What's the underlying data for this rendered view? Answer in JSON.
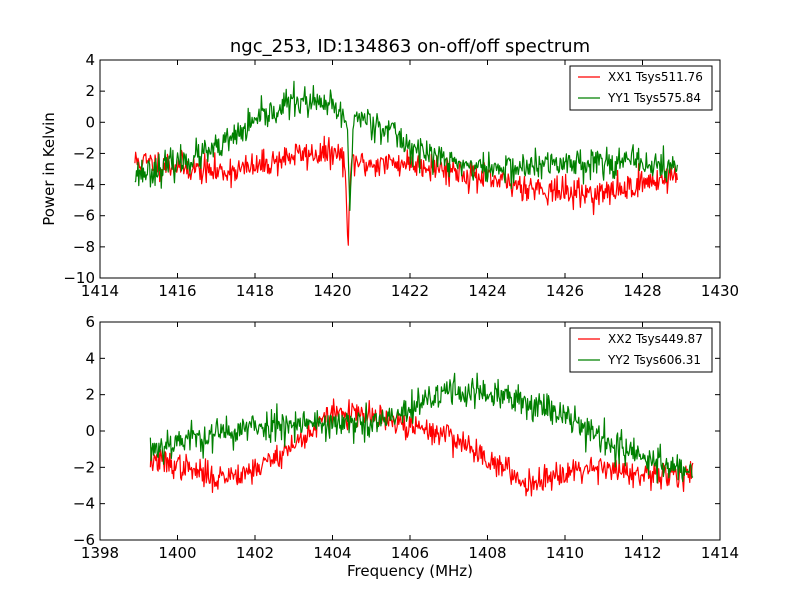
{
  "chart_data": [
    {
      "type": "line",
      "title": "ngc_253, ID:134863 on-off/off spectrum",
      "xlabel": "",
      "ylabel": "Power in Kelvin",
      "xlim": [
        1414,
        1430
      ],
      "ylim": [
        -10,
        4
      ],
      "xticks": [
        "1414",
        "1416",
        "1418",
        "1420",
        "1422",
        "1424",
        "1426",
        "1428",
        "1430"
      ],
      "yticks": [
        "−10",
        "−8",
        "−6",
        "−4",
        "−2",
        "0",
        "2",
        "4"
      ],
      "grid": false,
      "legend_position": "top-right",
      "x_start": 1414.9,
      "x_end": 1428.9,
      "num_points": 700,
      "series": [
        {
          "name": "XX1 Tsys511.76",
          "color": "#ff0000",
          "noise": 0.75,
          "seed": 11,
          "shape": [
            [
              1414.9,
              -2.5
            ],
            [
              1416.0,
              -2.8
            ],
            [
              1417.0,
              -3.2
            ],
            [
              1418.0,
              -2.9
            ],
            [
              1419.0,
              -2.1
            ],
            [
              1420.0,
              -2.0
            ],
            [
              1420.8,
              -2.7
            ],
            [
              1422.0,
              -2.6
            ],
            [
              1423.0,
              -3.0
            ],
            [
              1424.0,
              -3.7
            ],
            [
              1425.0,
              -4.1
            ],
            [
              1426.0,
              -4.5
            ],
            [
              1427.0,
              -4.6
            ],
            [
              1428.0,
              -3.9
            ],
            [
              1428.9,
              -3.4
            ]
          ],
          "dips": [
            [
              1420.4,
              -5.8,
              0.05
            ]
          ]
        },
        {
          "name": "YY1 Tsys575.84",
          "color": "#008000",
          "noise": 0.8,
          "seed": 23,
          "shape": [
            [
              1414.9,
              -3.3
            ],
            [
              1415.5,
              -3.0
            ],
            [
              1416.0,
              -2.6
            ],
            [
              1417.0,
              -1.8
            ],
            [
              1418.0,
              0.0
            ],
            [
              1419.0,
              1.4
            ],
            [
              1420.0,
              1.0
            ],
            [
              1420.3,
              0.2
            ],
            [
              1420.8,
              0.3
            ],
            [
              1421.5,
              -0.5
            ],
            [
              1422.0,
              -1.6
            ],
            [
              1423.0,
              -2.5
            ],
            [
              1424.0,
              -3.0
            ],
            [
              1425.0,
              -2.9
            ],
            [
              1426.0,
              -2.6
            ],
            [
              1427.0,
              -2.5
            ],
            [
              1428.0,
              -2.6
            ],
            [
              1428.9,
              -3.0
            ]
          ],
          "dips": [
            [
              1420.45,
              -5.5,
              0.05
            ]
          ]
        }
      ]
    },
    {
      "type": "line",
      "title": "",
      "xlabel": "Frequency (MHz)",
      "ylabel": "",
      "xlim": [
        1398,
        1414
      ],
      "ylim": [
        -6,
        6
      ],
      "xticks": [
        "1398",
        "1400",
        "1402",
        "1404",
        "1406",
        "1408",
        "1410",
        "1412",
        "1414"
      ],
      "yticks": [
        "−6",
        "−4",
        "−2",
        "0",
        "2",
        "4",
        "6"
      ],
      "grid": false,
      "legend_position": "top-right",
      "x_start": 1399.3,
      "x_end": 1413.3,
      "num_points": 700,
      "series": [
        {
          "name": "XX2 Tsys449.87",
          "color": "#ff0000",
          "noise": 0.6,
          "seed": 37,
          "shape": [
            [
              1399.3,
              -1.6
            ],
            [
              1400.0,
              -1.9
            ],
            [
              1401.0,
              -2.6
            ],
            [
              1402.0,
              -2.1
            ],
            [
              1403.0,
              -0.8
            ],
            [
              1404.0,
              1.0
            ],
            [
              1405.0,
              0.8
            ],
            [
              1406.0,
              0.2
            ],
            [
              1407.0,
              -0.2
            ],
            [
              1408.0,
              -1.5
            ],
            [
              1409.0,
              -2.9
            ],
            [
              1410.0,
              -2.2
            ],
            [
              1411.0,
              -1.9
            ],
            [
              1412.0,
              -2.6
            ],
            [
              1413.3,
              -2.2
            ]
          ],
          "dips": []
        },
        {
          "name": "YY2 Tsys606.31",
          "color": "#008000",
          "noise": 0.75,
          "seed": 53,
          "shape": [
            [
              1399.3,
              -1.0
            ],
            [
              1400.0,
              -0.5
            ],
            [
              1401.0,
              -0.2
            ],
            [
              1402.0,
              0.2
            ],
            [
              1403.0,
              0.5
            ],
            [
              1404.0,
              0.4
            ],
            [
              1405.0,
              0.3
            ],
            [
              1406.0,
              1.1
            ],
            [
              1407.0,
              2.3
            ],
            [
              1408.0,
              2.0
            ],
            [
              1409.0,
              1.6
            ],
            [
              1410.0,
              1.0
            ],
            [
              1411.0,
              -0.5
            ],
            [
              1412.0,
              -1.5
            ],
            [
              1413.3,
              -2.2
            ]
          ],
          "dips": []
        }
      ]
    }
  ]
}
